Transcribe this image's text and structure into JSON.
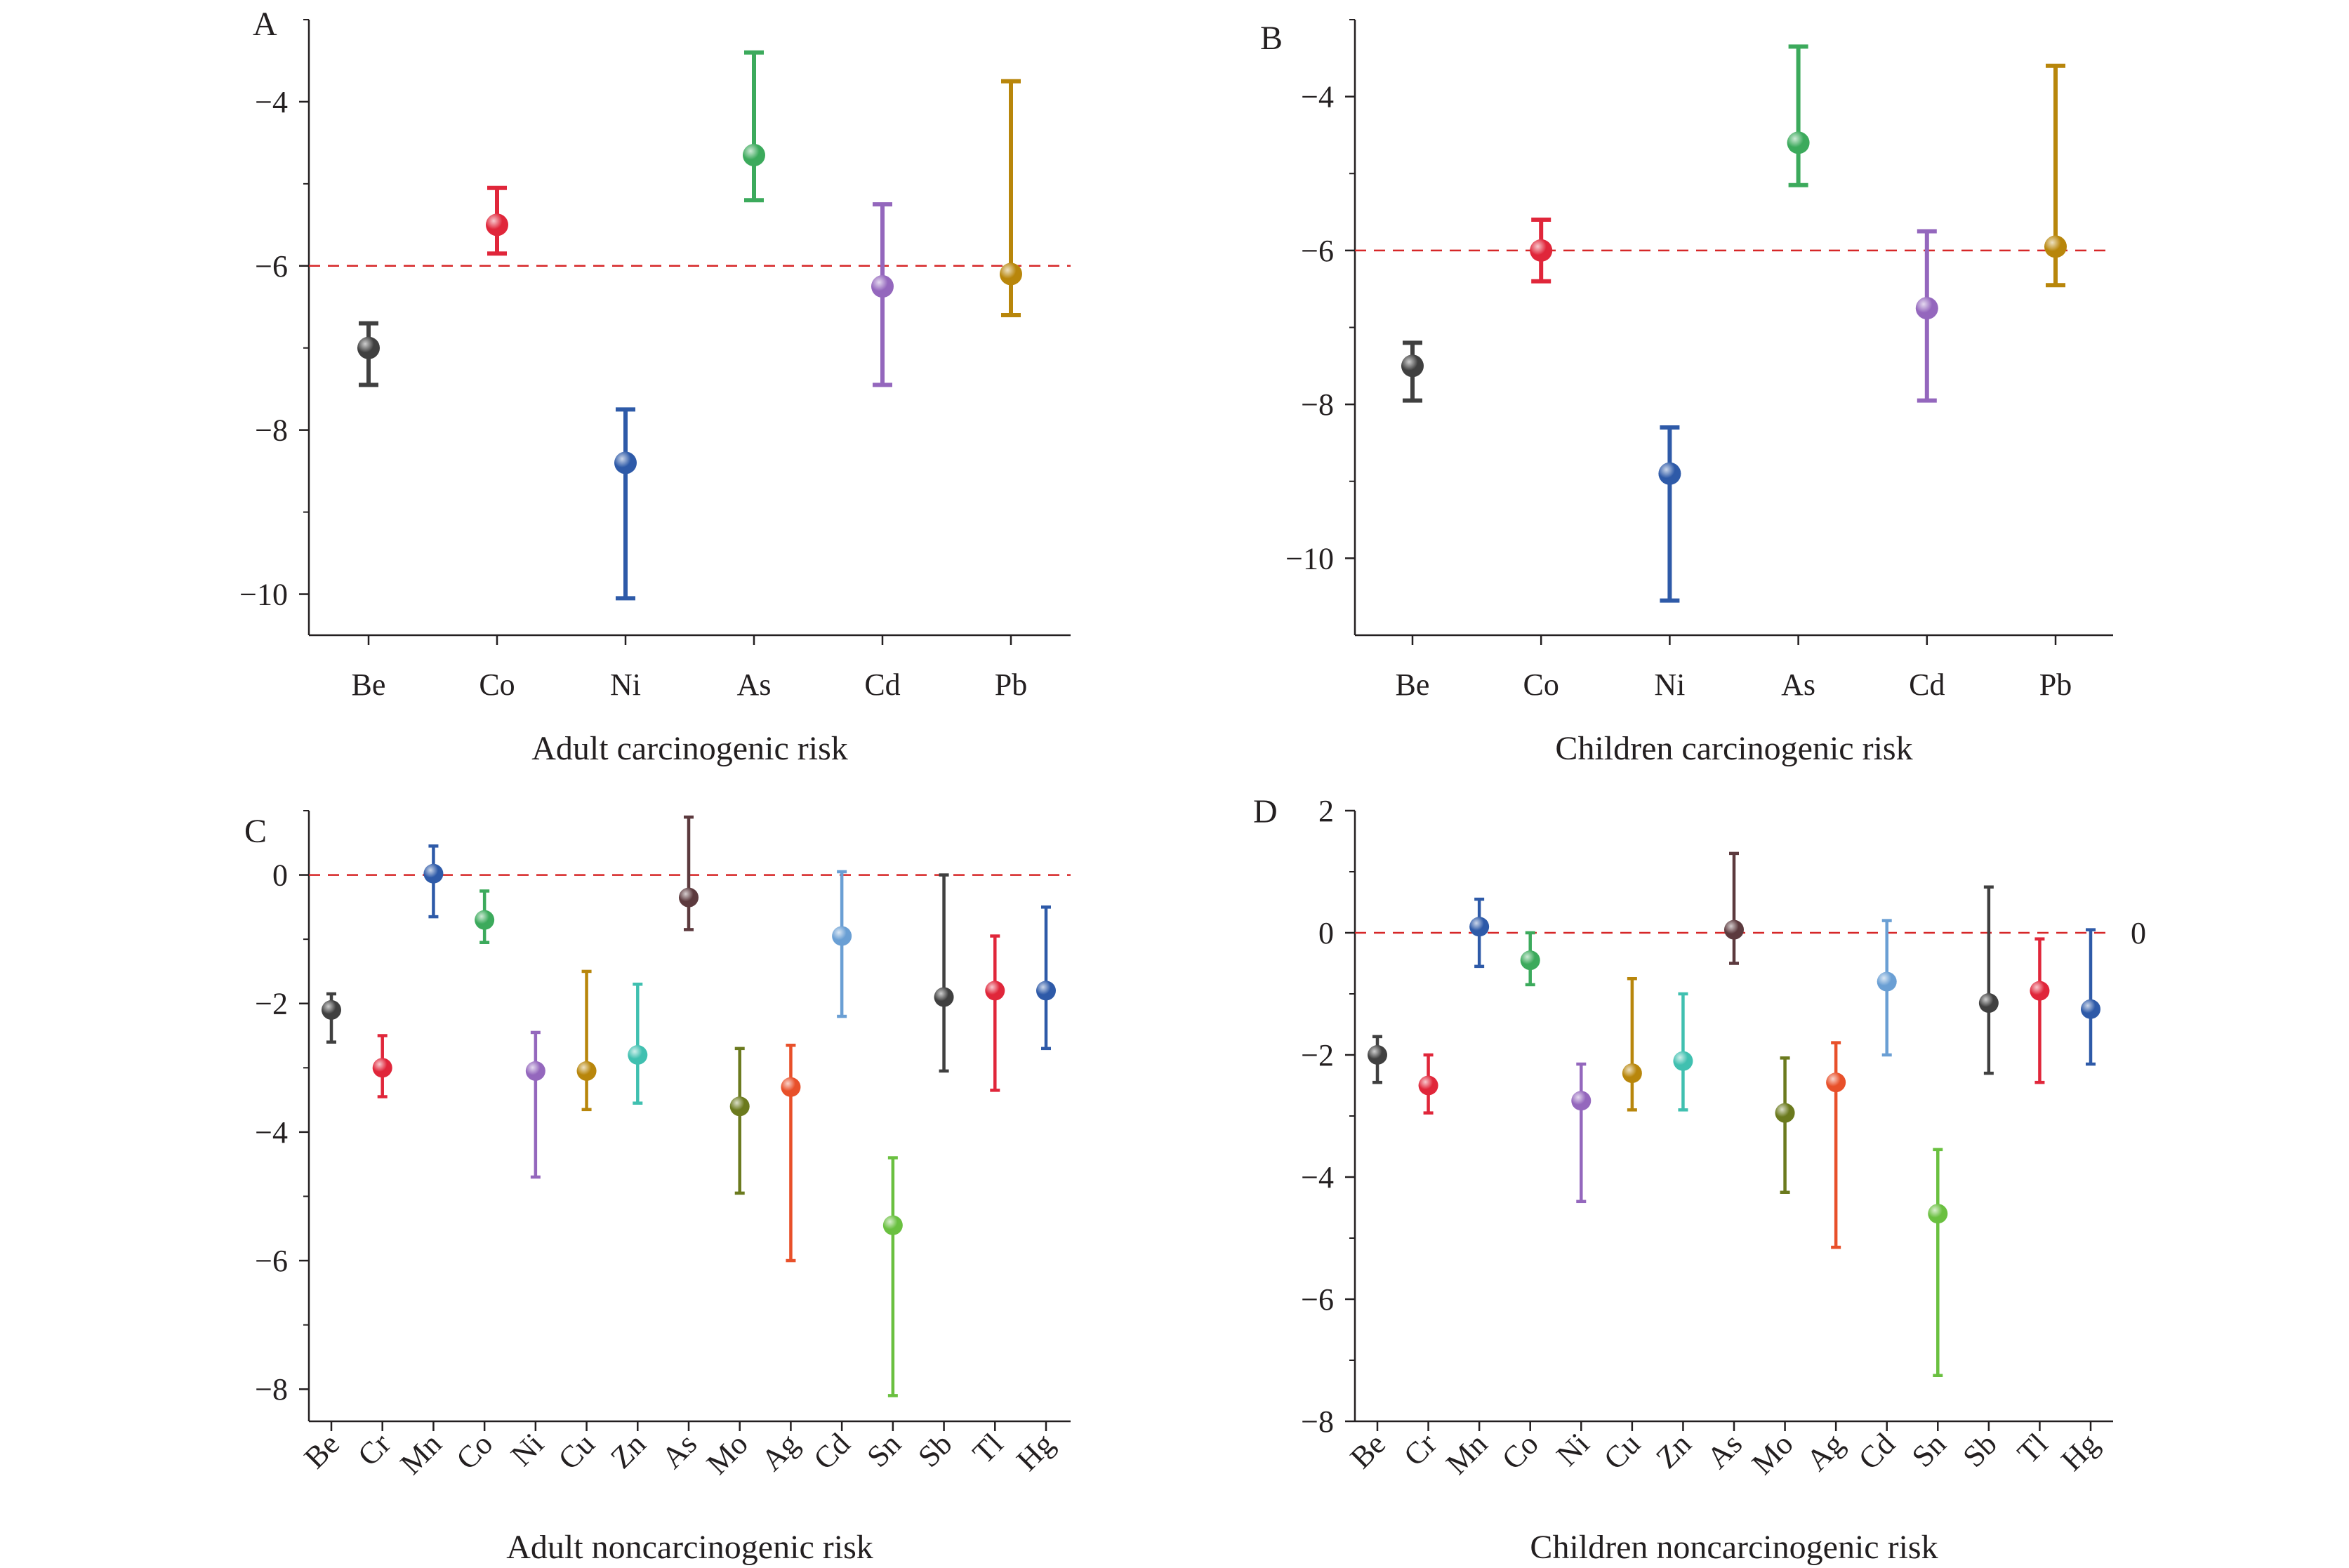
{
  "figure": {
    "reference_line_color": "#d62728",
    "axis_color": "#231f20"
  },
  "chart_data": [
    {
      "panel": "A",
      "type": "errorbar",
      "xlabel": "Adult carcinogenic risk",
      "ylabel": "",
      "ylim": [
        -10.5,
        -3
      ],
      "yticks": [
        -10,
        -8,
        -6,
        -4
      ],
      "ytick_labels": [
        "−10",
        "−8",
        "−6",
        "−4"
      ],
      "reference_line": -6,
      "rotate_xticks": false,
      "categories": [
        "Be",
        "Co",
        "Ni",
        "As",
        "Cd",
        "Pb"
      ],
      "colors": [
        "#404040",
        "#e0263a",
        "#2e5aa8",
        "#3caa5c",
        "#9467bd",
        "#b8860b"
      ],
      "means": [
        -7.0,
        -5.5,
        -8.4,
        -4.65,
        -6.25,
        -6.1
      ],
      "lower": [
        -7.45,
        -5.85,
        -10.05,
        -5.2,
        -7.45,
        -6.6
      ],
      "upper": [
        -6.7,
        -5.05,
        -7.75,
        -3.4,
        -5.25,
        -3.75
      ]
    },
    {
      "panel": "B",
      "type": "errorbar",
      "xlabel": "Children carcinogenic risk",
      "ylabel": "",
      "ylim": [
        -11,
        -3
      ],
      "yticks": [
        -10,
        -8,
        -6,
        -4
      ],
      "ytick_labels": [
        "−10",
        "−8",
        "−6",
        "−4"
      ],
      "reference_line": -6,
      "rotate_xticks": false,
      "categories": [
        "Be",
        "Co",
        "Ni",
        "As",
        "Cd",
        "Pb"
      ],
      "colors": [
        "#404040",
        "#e0263a",
        "#2e5aa8",
        "#3caa5c",
        "#9467bd",
        "#b8860b"
      ],
      "means": [
        -7.5,
        -6.0,
        -8.9,
        -4.6,
        -6.75,
        -5.95
      ],
      "lower": [
        -7.95,
        -6.4,
        -10.55,
        -5.15,
        -7.95,
        -6.45
      ],
      "upper": [
        -7.2,
        -5.6,
        -8.3,
        -3.35,
        -5.75,
        -3.6
      ]
    },
    {
      "panel": "C",
      "type": "errorbar",
      "xlabel": "Adult noncarcinogenic risk",
      "ylabel": "",
      "ylim": [
        -8.5,
        1
      ],
      "yticks": [
        -8,
        -6,
        -4,
        -2,
        0
      ],
      "ytick_labels": [
        "−8",
        "−6",
        "−4",
        "−2",
        "0"
      ],
      "reference_line": 0,
      "rotate_xticks": true,
      "categories": [
        "Be",
        "Cr",
        "Mn",
        "Co",
        "Ni",
        "Cu",
        "Zn",
        "As",
        "Mo",
        "Ag",
        "Cd",
        "Sn",
        "Sb",
        "Tl",
        "Hg"
      ],
      "colors": [
        "#404040",
        "#e0263a",
        "#2e5aa8",
        "#3caa5c",
        "#9467bd",
        "#b8860b",
        "#40c0b0",
        "#5c3a3e",
        "#6b7a1e",
        "#e8502a",
        "#6a9fd4",
        "#6ac040",
        "#404040",
        "#e0263a",
        "#2e5aa8"
      ],
      "means": [
        -2.1,
        -3.0,
        0.02,
        -0.7,
        -3.05,
        -3.05,
        -2.8,
        -0.35,
        -3.6,
        -3.3,
        -0.95,
        -5.45,
        -1.9,
        -1.8,
        -1.8
      ],
      "lower": [
        -2.6,
        -3.45,
        -0.65,
        -1.05,
        -4.7,
        -3.65,
        -3.55,
        -0.85,
        -4.95,
        -6.0,
        -2.2,
        -8.1,
        -3.05,
        -3.35,
        -2.7
      ],
      "upper": [
        -1.85,
        -2.5,
        0.45,
        -0.25,
        -2.45,
        -1.5,
        -1.7,
        0.9,
        -2.7,
        -2.65,
        0.05,
        -4.4,
        0.0,
        -0.95,
        -0.5
      ]
    },
    {
      "panel": "D",
      "type": "errorbar",
      "xlabel": "Children noncarcinogenic risk",
      "ylabel": "",
      "ylim": [
        -8,
        2
      ],
      "yticks": [
        -8,
        -6,
        -4,
        -2,
        0,
        2
      ],
      "ytick_labels": [
        "−8",
        "−6",
        "−4",
        "−2",
        "0",
        "2"
      ],
      "reference_line": 0,
      "reference_label": "0",
      "rotate_xticks": true,
      "categories": [
        "Be",
        "Cr",
        "Mn",
        "Co",
        "Ni",
        "Cu",
        "Zn",
        "As",
        "Mo",
        "Ag",
        "Cd",
        "Sn",
        "Sb",
        "Tl",
        "Hg"
      ],
      "colors": [
        "#404040",
        "#e0263a",
        "#2e5aa8",
        "#3caa5c",
        "#9467bd",
        "#b8860b",
        "#40c0b0",
        "#5c3a3e",
        "#6b7a1e",
        "#e8502a",
        "#6a9fd4",
        "#6ac040",
        "#404040",
        "#e0263a",
        "#2e5aa8"
      ],
      "means": [
        -2.0,
        -2.5,
        0.1,
        -0.45,
        -2.75,
        -2.3,
        -2.1,
        0.05,
        -2.95,
        -2.45,
        -0.8,
        -4.6,
        -1.15,
        -0.95,
        -1.25
      ],
      "lower": [
        -2.45,
        -2.95,
        -0.55,
        -0.85,
        -4.4,
        -2.9,
        -2.9,
        -0.5,
        -4.25,
        -5.15,
        -2.0,
        -7.25,
        -2.3,
        -2.45,
        -2.15
      ],
      "upper": [
        -1.7,
        -2.0,
        0.55,
        0.0,
        -2.15,
        -0.75,
        -1.0,
        1.3,
        -2.05,
        -1.8,
        0.2,
        -3.55,
        0.75,
        -0.1,
        0.05
      ]
    }
  ]
}
